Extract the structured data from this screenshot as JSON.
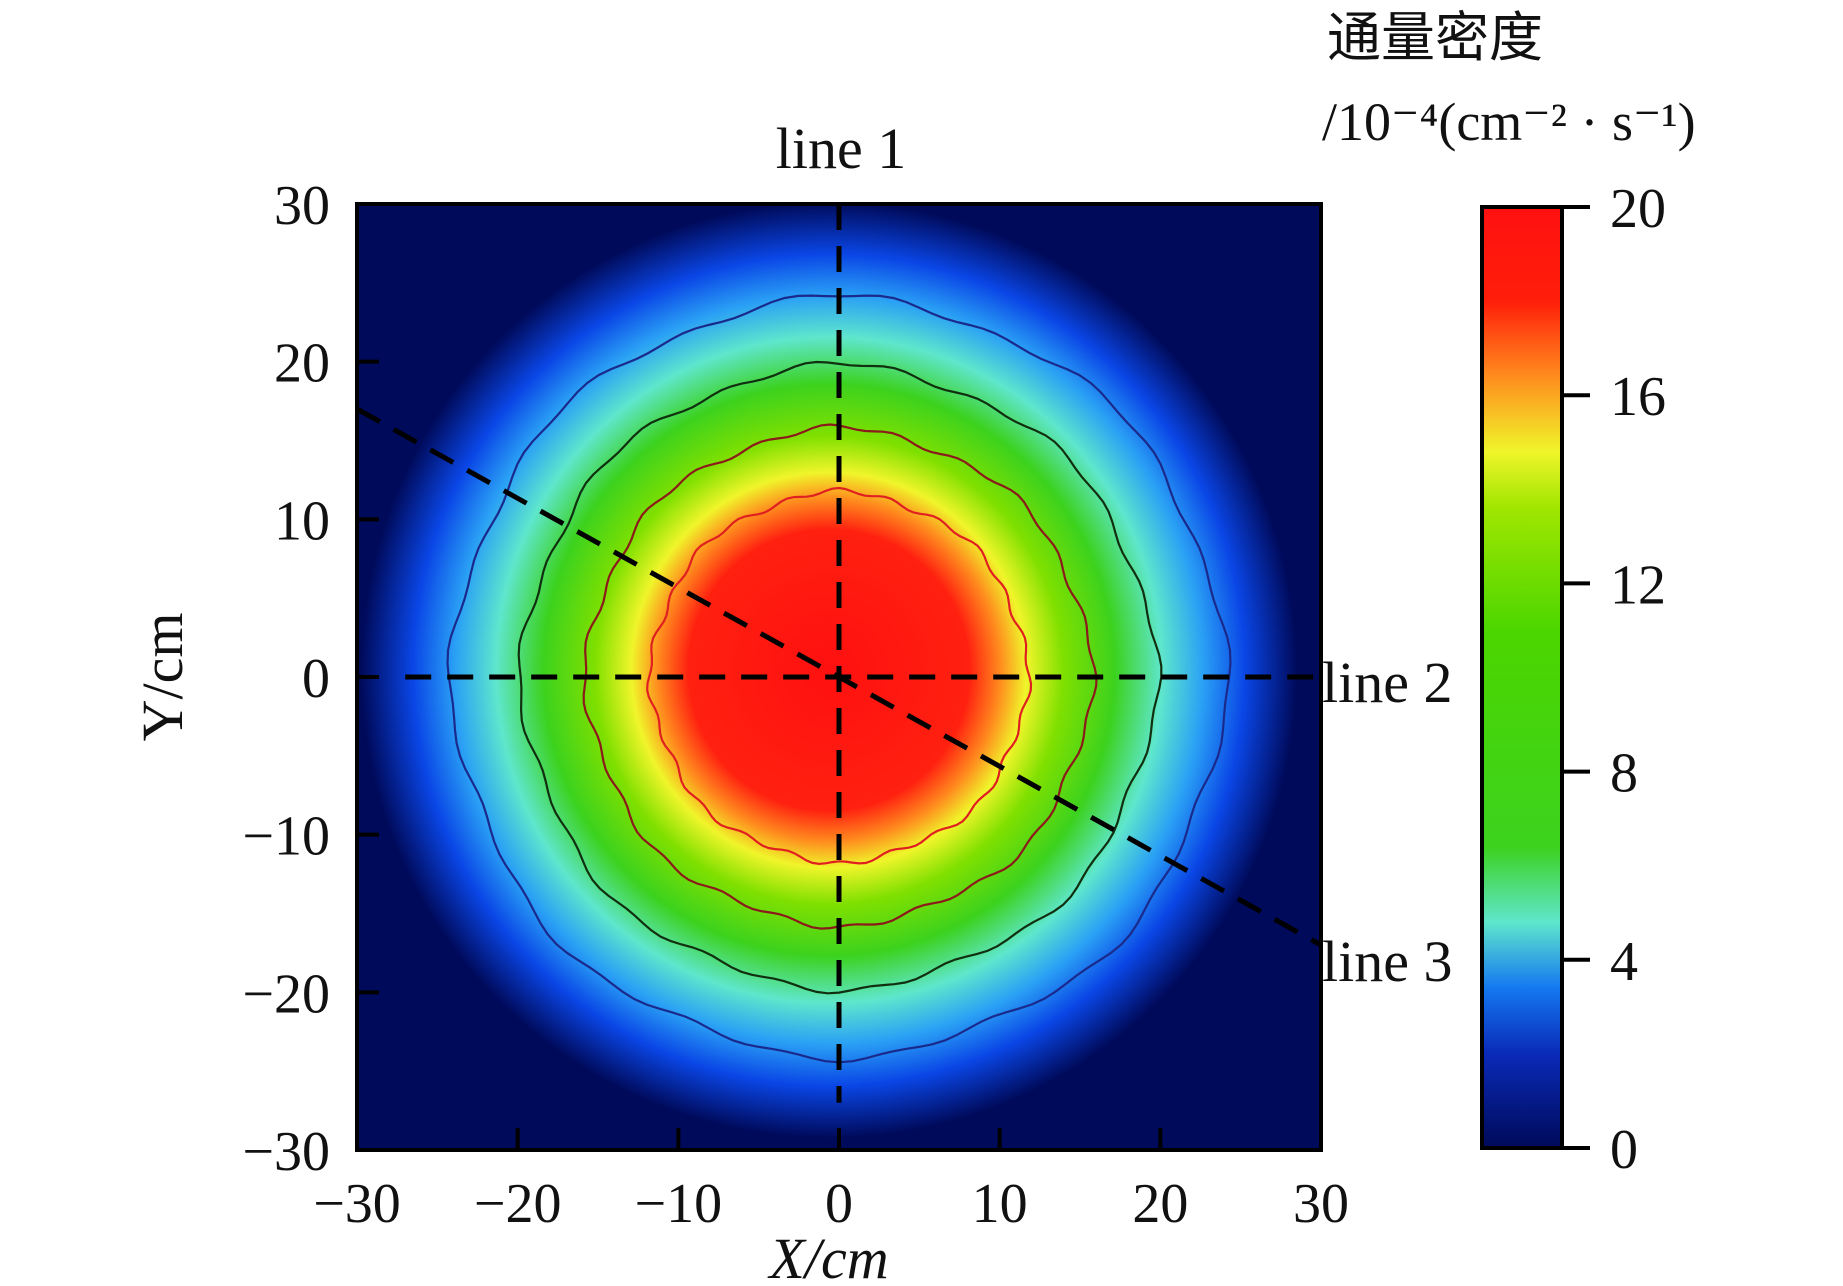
{
  "chart_data": {
    "type": "heatmap",
    "title": "",
    "xlabel": "X/cm",
    "ylabel": "Y/cm",
    "xlim": [
      -30,
      30
    ],
    "ylim": [
      -30,
      30
    ],
    "xticks": [
      "−30",
      "−20",
      "−10",
      "0",
      "10",
      "20",
      "30"
    ],
    "yticks": [
      "30",
      "20",
      "10",
      "0",
      "−10",
      "−20",
      "−30"
    ],
    "tick_values": [
      -30,
      -20,
      -10,
      0,
      10,
      20,
      30
    ],
    "colorbar": {
      "title_line1": "通量密度",
      "title_line2": "/10⁻⁴(cm⁻² · s⁻¹)",
      "range": [
        0,
        20
      ],
      "tick_values": [
        0,
        4,
        8,
        12,
        16,
        20
      ],
      "tick_labels": [
        "0",
        "4",
        "8",
        "12",
        "16",
        "20"
      ],
      "colors": [
        "#000a5a",
        "#0a46e6",
        "#2aa0f5",
        "#5fe6cc",
        "#3cd21e",
        "#4cd600",
        "#a0e600",
        "#f0f52a",
        "#ff8c1e",
        "#ff1e0a",
        "#ff1010"
      ]
    },
    "center": [
      0,
      0
    ],
    "contours": [
      {
        "level": 4,
        "radius": 24,
        "color": "#1a2a8c"
      },
      {
        "level": 8,
        "radius": 19.7,
        "color": "#103010"
      },
      {
        "level": 12,
        "radius": 15.7,
        "color": "#8b1a1a"
      },
      {
        "level": 16,
        "radius": 11.7,
        "color": "#e02020"
      }
    ],
    "lines": [
      {
        "name": "line 1",
        "from": [
          0,
          30
        ],
        "to": [
          0,
          -27
        ]
      },
      {
        "name": "line 2",
        "from": [
          -27,
          0
        ],
        "to": [
          30,
          0
        ]
      },
      {
        "name": "line 3",
        "from": [
          -30,
          17
        ],
        "to": [
          30,
          -17
        ]
      }
    ]
  }
}
